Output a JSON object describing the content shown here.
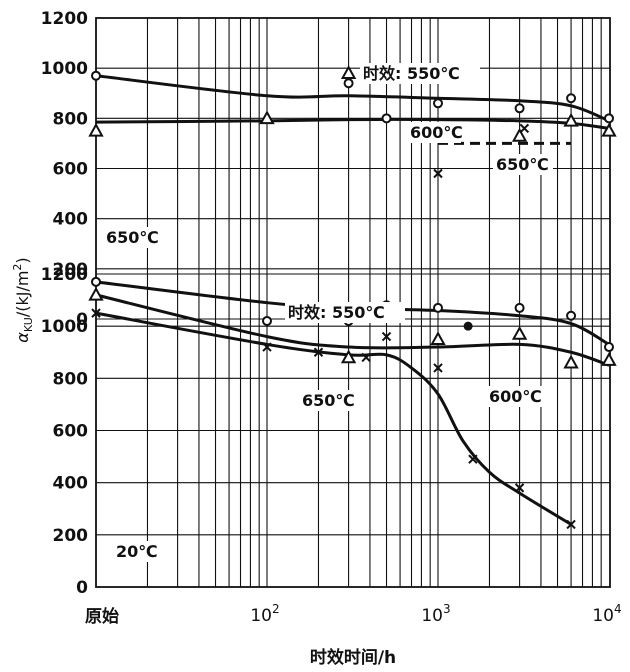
{
  "chart_data": {
    "type": "line",
    "x_scale": "log",
    "x_ticks": [
      {
        "value": "原始",
        "label": "原始"
      },
      {
        "value": 100,
        "label": "10^2",
        "base": "10",
        "exp": "2"
      },
      {
        "value": 1000,
        "label": "10^3",
        "base": "10",
        "exp": "3"
      },
      {
        "value": 10000,
        "label": "10^4",
        "base": "10",
        "exp": "4"
      }
    ],
    "xlabel": "时效时间/h",
    "ylabel": "α_KU/(kJ/m²)",
    "ylabel_parts": {
      "alpha": "α",
      "sub": "KU",
      "rest": "/(kJ/m",
      "sup": "2",
      "close": ")"
    },
    "grid": true,
    "panels": [
      {
        "name": "upper",
        "ylim": [
          0,
          1200
        ],
        "y_ticks": [
          "0",
          "200",
          "400",
          "600",
          "800",
          "1000",
          "1200"
        ],
        "temperature_label": "650℃",
        "annotations": [
          {
            "key": "t550",
            "text": "时效: 550℃"
          },
          {
            "key": "t600",
            "text": "600℃"
          },
          {
            "key": "t650",
            "text": "650℃"
          }
        ],
        "series": [
          {
            "key": "u550",
            "marker": "circle",
            "style": "solid",
            "points": [
              [
                0,
                970
              ],
              [
                300,
                940
              ],
              [
                500,
                800
              ],
              [
                1000,
                860
              ],
              [
                3000,
                840
              ],
              [
                6000,
                880
              ],
              [
                10000,
                800
              ]
            ],
            "curve": [
              [
                0,
                970
              ],
              [
                100,
                890
              ],
              [
                300,
                890
              ],
              [
                1000,
                880
              ],
              [
                3000,
                870
              ],
              [
                6000,
                850
              ],
              [
                10000,
                790
              ]
            ]
          },
          {
            "key": "u600",
            "marker": "triangle",
            "style": "solid",
            "points": [
              [
                0,
                750
              ],
              [
                100,
                800
              ],
              [
                300,
                980
              ],
              [
                3000,
                730
              ],
              [
                6000,
                790
              ],
              [
                10000,
                750
              ]
            ],
            "curve": [
              [
                0,
                785
              ],
              [
                100,
                790
              ],
              [
                300,
                795
              ],
              [
                1000,
                795
              ],
              [
                3000,
                790
              ],
              [
                6000,
                780
              ],
              [
                10000,
                760
              ]
            ]
          },
          {
            "key": "u650",
            "marker": "x",
            "style": "dashed",
            "points": [
              [
                1000,
                580
              ],
              [
                3200,
                760
              ]
            ],
            "curve": [
              [
                1000,
                700
              ],
              [
                6000,
                700
              ]
            ]
          }
        ]
      },
      {
        "name": "lower",
        "ylim": [
          0,
          1200
        ],
        "y_ticks": [
          "0",
          "200",
          "400",
          "600",
          "800",
          "1000",
          "1200"
        ],
        "temperature_label": "20℃",
        "annotations": [
          {
            "key": "t550",
            "text": "时效: 550℃"
          },
          {
            "key": "t600",
            "text": "600℃"
          },
          {
            "key": "t650",
            "text": "650℃"
          }
        ],
        "series": [
          {
            "key": "l550",
            "marker": "circle",
            "style": "solid",
            "points": [
              [
                0,
                1170
              ],
              [
                100,
                1020
              ],
              [
                300,
                1020
              ],
              [
                500,
                1080
              ],
              [
                1000,
                1070
              ],
              [
                3000,
                1070
              ],
              [
                6000,
                1040
              ],
              [
                10000,
                920
              ]
            ],
            "curve": [
              [
                0,
                1170
              ],
              [
                100,
                1090
              ],
              [
                300,
                1070
              ],
              [
                1000,
                1060
              ],
              [
                3000,
                1040
              ],
              [
                6000,
                1010
              ],
              [
                10000,
                930
              ]
            ]
          },
          {
            "key": "l600",
            "marker": "triangle",
            "style": "solid",
            "points": [
              [
                0,
                1120
              ],
              [
                300,
                880
              ],
              [
                1000,
                950
              ],
              [
                3000,
                970
              ],
              [
                6000,
                860
              ],
              [
                10000,
                870
              ]
            ],
            "curve": [
              [
                0,
                1120
              ],
              [
                100,
                960
              ],
              [
                300,
                920
              ],
              [
                1000,
                920
              ],
              [
                3000,
                930
              ],
              [
                6000,
                900
              ],
              [
                10000,
                850
              ]
            ]
          },
          {
            "key": "l650",
            "marker": "x",
            "style": "solid",
            "points": [
              [
                0,
                1050
              ],
              [
                100,
                920
              ],
              [
                200,
                900
              ],
              [
                380,
                880
              ],
              [
                500,
                960
              ],
              [
                1000,
                840
              ],
              [
                1600,
                490
              ],
              [
                3000,
                380
              ],
              [
                6000,
                240
              ]
            ],
            "curve": [
              [
                0,
                1050
              ],
              [
                100,
                930
              ],
              [
                300,
                890
              ],
              [
                500,
                890
              ],
              [
                700,
                840
              ],
              [
                1000,
                740
              ],
              [
                1400,
                560
              ],
              [
                2000,
                440
              ],
              [
                3000,
                360
              ],
              [
                6000,
                240
              ]
            ]
          },
          {
            "key": "l_dot",
            "marker": "dot",
            "style": "none",
            "points": [
              [
                1500,
                1000
              ]
            ]
          }
        ]
      }
    ]
  }
}
